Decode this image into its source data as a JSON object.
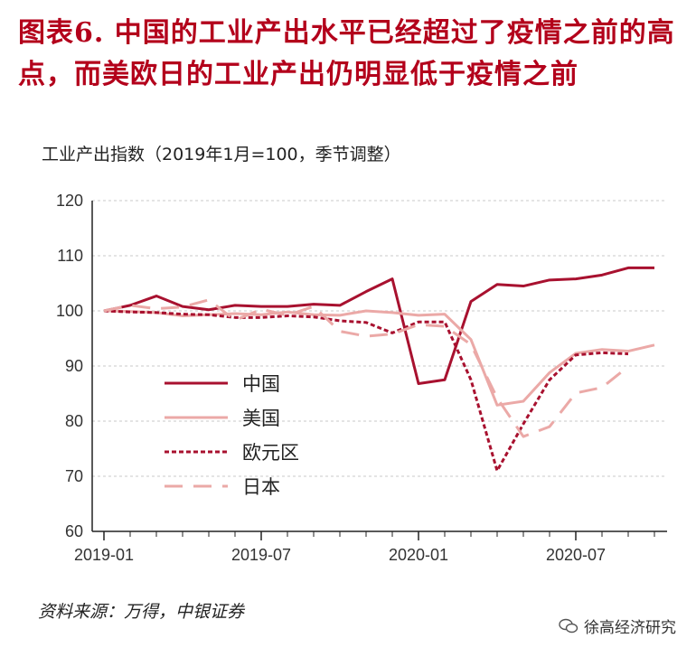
{
  "header": {
    "title": "图表6.  中国的工业产出水平已经超过了疫情之前的高点，而美欧日的工业产出仍明显低于疫情之前",
    "unit_label": "工业产出指数（2019年1月=100，季节调整）"
  },
  "footer": {
    "source": "资料来源：万得，中银证券",
    "watermark": "徐高经济研究"
  },
  "chart_data": {
    "type": "line",
    "title": "",
    "xlabel": "",
    "ylabel": "",
    "ylim": [
      60,
      120
    ],
    "yticks": [
      60,
      70,
      80,
      90,
      100,
      110,
      120
    ],
    "x_tick_labels": [
      "2019-01",
      "2019-07",
      "2020-01",
      "2020-07"
    ],
    "x_tick_index": [
      0,
      6,
      12,
      18
    ],
    "x": [
      "2019-01",
      "2019-02",
      "2019-03",
      "2019-04",
      "2019-05",
      "2019-06",
      "2019-07",
      "2019-08",
      "2019-09",
      "2019-10",
      "2019-11",
      "2019-12",
      "2020-01",
      "2020-02",
      "2020-03",
      "2020-04",
      "2020-05",
      "2020-06",
      "2020-07",
      "2020-08",
      "2020-09",
      "2020-10"
    ],
    "grid": "horizontal",
    "legend_position": "lower-left",
    "series": [
      {
        "name": "中国",
        "color": "#a8112f",
        "dash": "solid",
        "values": [
          100,
          101,
          102.7,
          100.8,
          100.2,
          101,
          100.8,
          100.8,
          101.2,
          101,
          103.5,
          105.8,
          86.8,
          87.5,
          101.7,
          104.8,
          104.5,
          105.6,
          105.8,
          106.5,
          107.8,
          107.8
        ]
      },
      {
        "name": "美国",
        "color": "#eba9a7",
        "dash": "solid",
        "values": [
          100,
          99.9,
          99.7,
          99.1,
          99.3,
          99.5,
          99.3,
          99.8,
          99.3,
          99.2,
          100,
          99.7,
          99.2,
          99.4,
          94.8,
          82.9,
          83.6,
          88.8,
          92.3,
          93.0,
          92.7,
          93.8
        ]
      },
      {
        "name": "欧元区",
        "color": "#a8112f",
        "dash": "dotted",
        "values": [
          100,
          99.8,
          99.7,
          99.4,
          99.3,
          98.8,
          98.8,
          99.1,
          98.9,
          98.2,
          97.9,
          96,
          98,
          98,
          87.5,
          71,
          79.5,
          87.5,
          92,
          92.4,
          92.2,
          null
        ]
      },
      {
        "name": "日本",
        "color": "#eba9a7",
        "dash": "dashed",
        "values": [
          100,
          101,
          100.4,
          100.7,
          102,
          98.3,
          100.3,
          99.2,
          100.8,
          96.3,
          95.4,
          95.8,
          97.5,
          97.2,
          93.9,
          84.2,
          77.2,
          79,
          85.1,
          86.1,
          89.9,
          null
        ]
      }
    ]
  }
}
